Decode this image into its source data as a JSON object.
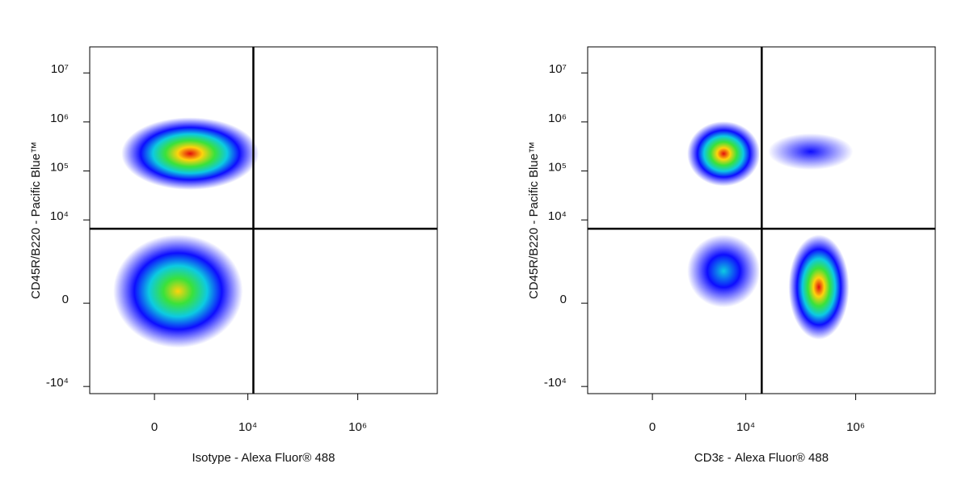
{
  "chart_data": [
    {
      "type": "flow-density",
      "scale": "biexponential",
      "x_label": "Isotype -  Alexa Fluor® 488",
      "y_label": "CD45R/B220 - Pacific Blue™",
      "xlim": [
        -3000,
        28000000
      ],
      "ylim": [
        -14000,
        34000000
      ],
      "xticks": [
        0,
        {
          "value": 10000,
          "label": "10⁴"
        },
        {
          "value": 1000000,
          "label": "10⁶"
        }
      ],
      "yticks": [
        {
          "value": -10000,
          "label": "-10⁴"
        },
        0,
        {
          "value": 10000,
          "label": "10⁴"
        },
        {
          "value": 100000,
          "label": "10⁵"
        },
        {
          "value": 1000000,
          "label": "10⁶"
        },
        {
          "value": 10000000,
          "label": "10⁷"
        }
      ],
      "gate_x": 12600,
      "gate_y": 6600,
      "populations": [
        {
          "x": [
            -750,
            15800
          ],
          "y": [
            41000,
            1240000
          ],
          "color": "#e00000"
        },
        {
          "x": [
            -1090,
            8100
          ],
          "y": [
            -1600,
            5000
          ],
          "color": "#ffd000"
        }
      ]
    },
    {
      "type": "flow-density",
      "scale": "biexponential",
      "x_label": "CD3ε -  Alexa Fluor® 488",
      "y_label": "CD45R/B220 - Pacific Blue™",
      "xlim": [
        -3000,
        28000000
      ],
      "ylim": [
        -14000,
        34000000
      ],
      "xticks": [
        0,
        {
          "value": 10000,
          "label": "10⁴"
        },
        {
          "value": 1000000,
          "label": "10⁶"
        }
      ],
      "yticks": [
        {
          "value": -10000,
          "label": "-10⁴"
        },
        0,
        {
          "value": 10000,
          "label": "10⁴"
        },
        {
          "value": 100000,
          "label": "10⁵"
        },
        {
          "value": 1000000,
          "label": "10⁶"
        },
        {
          "value": 10000000,
          "label": "10⁷"
        }
      ],
      "gate_x": 19500,
      "gate_y": 6600,
      "populations": [
        {
          "x": [
            815,
            18200
          ],
          "y": [
            49000,
            1030000
          ],
          "color": "#e00000"
        },
        {
          "x": [
            815,
            18200
          ],
          "y": [
            -80,
            5000
          ],
          "color": "#00c8e0"
        },
        {
          "x": [
            60000,
            760000
          ],
          "y": [
            -1070,
            5000
          ],
          "color": "#e00000"
        },
        {
          "x": [
            25500,
            900000
          ],
          "y": [
            105000,
            585000
          ],
          "color": "#0000ff"
        }
      ]
    }
  ]
}
